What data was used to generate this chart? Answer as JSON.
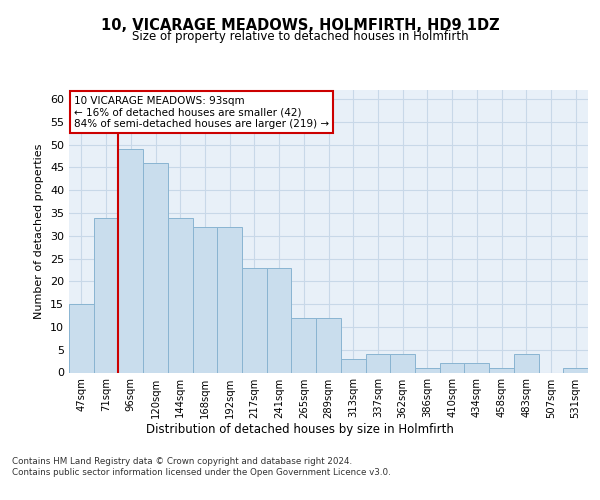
{
  "title": "10, VICARAGE MEADOWS, HOLMFIRTH, HD9 1DZ",
  "subtitle": "Size of property relative to detached houses in Holmfirth",
  "xlabel": "Distribution of detached houses by size in Holmfirth",
  "ylabel": "Number of detached properties",
  "bar_values": [
    15,
    34,
    49,
    46,
    34,
    32,
    32,
    23,
    23,
    12,
    12,
    3,
    4,
    4,
    1,
    2,
    2,
    1,
    4,
    0,
    1
  ],
  "categories": [
    "47sqm",
    "71sqm",
    "96sqm",
    "120sqm",
    "144sqm",
    "168sqm",
    "192sqm",
    "217sqm",
    "241sqm",
    "265sqm",
    "289sqm",
    "313sqm",
    "337sqm",
    "362sqm",
    "386sqm",
    "410sqm",
    "434sqm",
    "458sqm",
    "483sqm",
    "507sqm",
    "531sqm"
  ],
  "bar_color": "#c9dded",
  "bar_edge_color": "#89b4d1",
  "vline_x_index": 2,
  "vline_color": "#cc0000",
  "annotation_line1": "10 VICARAGE MEADOWS: 93sqm",
  "annotation_line2": "← 16% of detached houses are smaller (42)",
  "annotation_line3": "84% of semi-detached houses are larger (219) →",
  "annotation_box_facecolor": "#ffffff",
  "annotation_box_edgecolor": "#cc0000",
  "ylim": [
    0,
    62
  ],
  "yticks": [
    0,
    5,
    10,
    15,
    20,
    25,
    30,
    35,
    40,
    45,
    50,
    55,
    60
  ],
  "grid_color": "#c8d8e8",
  "plot_bg_color": "#e8f0f8",
  "footer_text": "Contains HM Land Registry data © Crown copyright and database right 2024.\nContains public sector information licensed under the Open Government Licence v3.0."
}
